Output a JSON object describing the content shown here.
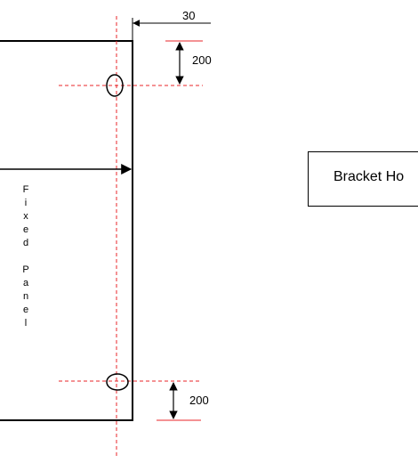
{
  "dimensions": {
    "offset_right": "30",
    "top_hole_spacing": "200",
    "bottom_hole_spacing": "200"
  },
  "panel": {
    "label_chars": [
      "F",
      "i",
      "x",
      "e",
      "d",
      "",
      "P",
      "a",
      "n",
      "e",
      "l"
    ]
  },
  "legend": {
    "text": "Bracket Ho"
  },
  "colors": {
    "outline": "#000000",
    "guide": "#e8262a",
    "dimension_line": "#e8262a"
  }
}
